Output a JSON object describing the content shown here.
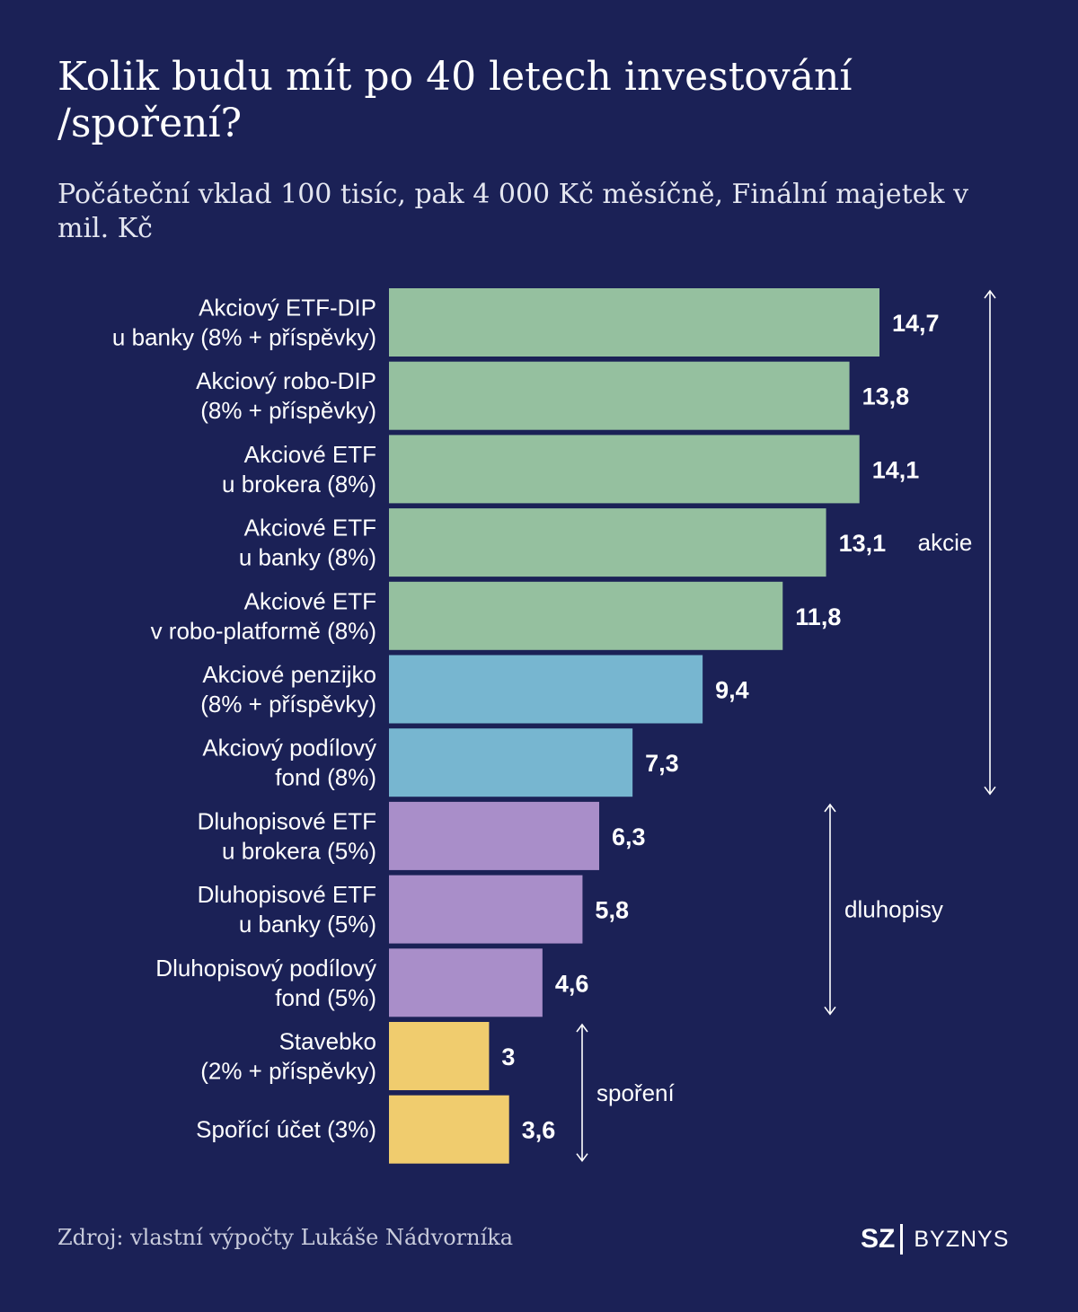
{
  "title": "Kolik budu mít po 40 letech investování /spoření?",
  "subtitle": "Počáteční vklad 100 tisíc, pak 4 000 Kč měsíčně, Finální majetek v mil. Kč",
  "source": "Zdroj: vlastní výpočty Lukáše Nádvorníka",
  "logo": {
    "mark": "SZ",
    "text": "BYZNYS"
  },
  "colors": {
    "background": "#1b2156",
    "etf": "#95c09f",
    "fund": "#77b6d0",
    "bond": "#a98ec9",
    "saving": "#f0cc6e"
  },
  "chart_data": {
    "type": "bar",
    "orientation": "horizontal",
    "unit": "mil. Kč",
    "xlim": [
      0,
      14.7
    ],
    "grid": false,
    "categories": [
      [
        "Akciový ETF-DIP",
        "u banky (8% + příspěvky)"
      ],
      [
        "Akciový robo-DIP",
        "(8% + příspěvky)"
      ],
      [
        "Akciové ETF",
        "u brokera (8%)"
      ],
      [
        "Akciové ETF",
        "u banky (8%)"
      ],
      [
        "Akciové ETF",
        "v robo-platformě (8%)"
      ],
      [
        "Akciové penzijko",
        "(8% + příspěvky)"
      ],
      [
        "Akciový podílový",
        "fond (8%)"
      ],
      [
        "Dluhopisové ETF",
        "u brokera (5%)"
      ],
      [
        "Dluhopisové ETF",
        "u banky (5%)"
      ],
      [
        "Dluhopisový podílový",
        "fond (5%)"
      ],
      [
        "Stavebko",
        "(2% + příspěvky)"
      ],
      [
        "Spořící účet (3%)"
      ]
    ],
    "values": [
      14.7,
      13.8,
      14.1,
      13.1,
      11.8,
      9.4,
      7.3,
      6.3,
      5.8,
      4.6,
      3,
      3.6
    ],
    "value_labels": [
      "14,7",
      "13,8",
      "14,1",
      "13,1",
      "11,8",
      "9,4",
      "7,3",
      "6,3",
      "5,8",
      "4,6",
      "3",
      "3,6"
    ],
    "bar_groups": [
      "etf",
      "etf",
      "etf",
      "etf",
      "etf",
      "fund",
      "fund",
      "bond",
      "bond",
      "bond",
      "saving",
      "saving"
    ],
    "brackets": [
      {
        "label": "akcie",
        "from": 0,
        "to": 6
      },
      {
        "label": "dluhopisy",
        "from": 7,
        "to": 9
      },
      {
        "label": "spoření",
        "from": 10,
        "to": 11
      }
    ]
  }
}
